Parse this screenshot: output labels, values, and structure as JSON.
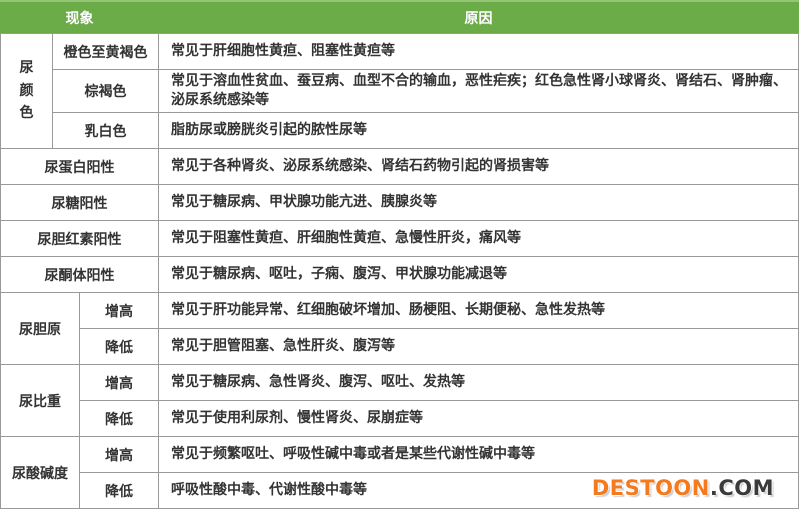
{
  "header": {
    "phenomenon": "现象",
    "cause": "原因"
  },
  "colors": {
    "header_bg": "#6cac48",
    "header_bg_light": "#93c573",
    "header_text": "#ffffff",
    "border": "#999999",
    "text": "#333333",
    "watermark_brand": "#f57a1d",
    "watermark_suffix": "#3a3a3a"
  },
  "urine_color_section": {
    "label": "尿颜色",
    "rows": [
      {
        "phenomenon": "橙色至黄褐色",
        "cause": "常见于肝细胞性黄疸、阻塞性黄疸等"
      },
      {
        "phenomenon": "棕褐色",
        "cause": "常见于溶血性贫血、蚕豆病、血型不合的输血，恶性疟疾；红色急性肾小球肾炎、肾结石、肾肿瘤、泌尿系统感染等"
      },
      {
        "phenomenon": "乳白色",
        "cause": "脂肪尿或膀胱炎引起的脓性尿等"
      }
    ]
  },
  "simple_rows": [
    {
      "phenomenon": "尿蛋白阳性",
      "cause": "常见于各种肾炎、泌尿系统感染、肾结石药物引起的肾损害等"
    },
    {
      "phenomenon": "尿糖阳性",
      "cause": "常见于糖尿病、甲状腺功能亢进、胰腺炎等"
    },
    {
      "phenomenon": "尿胆红素阳性",
      "cause": "常见于阻塞性黄疸、肝细胞性黄疸、急慢性肝炎，痛风等"
    },
    {
      "phenomenon": "尿酮体阳性",
      "cause": "常见于糖尿病、呕吐，子痫、腹泻、甲状腺功能减退等"
    }
  ],
  "grouped_sections": [
    {
      "label": "尿胆原",
      "rows": [
        {
          "level": "增高",
          "cause": "常见于肝功能异常、红细胞破坏增加、肠梗阻、长期便秘、急性发热等"
        },
        {
          "level": "降低",
          "cause": "常见于胆管阻塞、急性肝炎、腹泻等"
        }
      ]
    },
    {
      "label": "尿比重",
      "rows": [
        {
          "level": "增高",
          "cause": "常见于糖尿病、急性肾炎、腹泻、呕吐、发热等"
        },
        {
          "level": "降低",
          "cause": "常见于使用利尿剂、慢性肾炎、尿崩症等"
        }
      ]
    },
    {
      "label": "尿酸碱度",
      "rows": [
        {
          "level": "增高",
          "cause": "常见于频繁呕吐、呼吸性碱中毒或者是某些代谢性碱中毒等"
        },
        {
          "level": "降低",
          "cause": "呼吸性酸中毒、代谢性酸中毒等"
        }
      ]
    }
  ],
  "watermark": {
    "brand": "DESTOON",
    "suffix": ".COM"
  }
}
